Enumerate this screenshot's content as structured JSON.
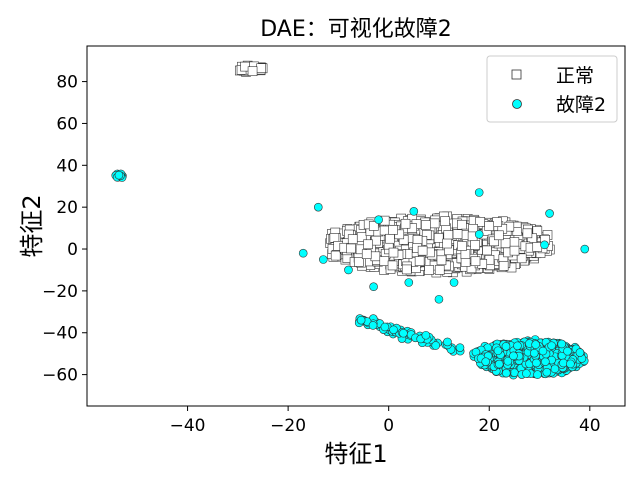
{
  "chart_data": {
    "type": "scatter",
    "title": "DAE：可视化故障2",
    "xlabel": "特征1",
    "ylabel": "特征2",
    "xlim": [
      -60,
      47
    ],
    "ylim": [
      -75,
      97
    ],
    "xticks": [
      "−40",
      "−20",
      "0",
      "20",
      "40"
    ],
    "xtick_values": [
      -40,
      -20,
      0,
      20,
      40
    ],
    "yticks": [
      "−60",
      "−40",
      "−20",
      "0",
      "20",
      "40",
      "60",
      "80"
    ],
    "ytick_values": [
      -60,
      -40,
      -20,
      0,
      20,
      40,
      60,
      80
    ],
    "grid": false,
    "legend_position": "top-right",
    "series": [
      {
        "name": "正常",
        "marker": "square",
        "fill": "#ffffff",
        "edge": "#333333",
        "clusters": [
          {
            "center": [
              10,
              2
            ],
            "spread": [
              22,
              13
            ],
            "count": 900
          },
          {
            "center": [
              -27.5,
              86
            ],
            "spread": [
              2.5,
              1.5
            ],
            "count": 30
          }
        ]
      },
      {
        "name": "故障2",
        "marker": "circle",
        "fill": "#00ffff",
        "edge": "#333333",
        "clusters": [
          {
            "center": [
              28,
              -52
            ],
            "spread": [
              11,
              8
            ],
            "count": 700
          },
          {
            "center": [
              4,
              -42
            ],
            "spread": [
              10,
              5
            ],
            "count": 70
          },
          {
            "center": [
              -53.5,
              35
            ],
            "spread": [
              1,
              1
            ],
            "count": 18
          }
        ],
        "outliers": [
          [
            -14,
            20
          ],
          [
            -17,
            -2
          ],
          [
            -13,
            -5
          ],
          [
            -8,
            -10
          ],
          [
            -3,
            -18
          ],
          [
            -2,
            14
          ],
          [
            4,
            -16
          ],
          [
            5,
            18
          ],
          [
            10,
            -24
          ],
          [
            13,
            -16
          ],
          [
            18,
            7
          ],
          [
            18,
            27
          ],
          [
            31,
            2
          ],
          [
            32,
            17
          ],
          [
            39,
            0
          ]
        ]
      }
    ]
  }
}
